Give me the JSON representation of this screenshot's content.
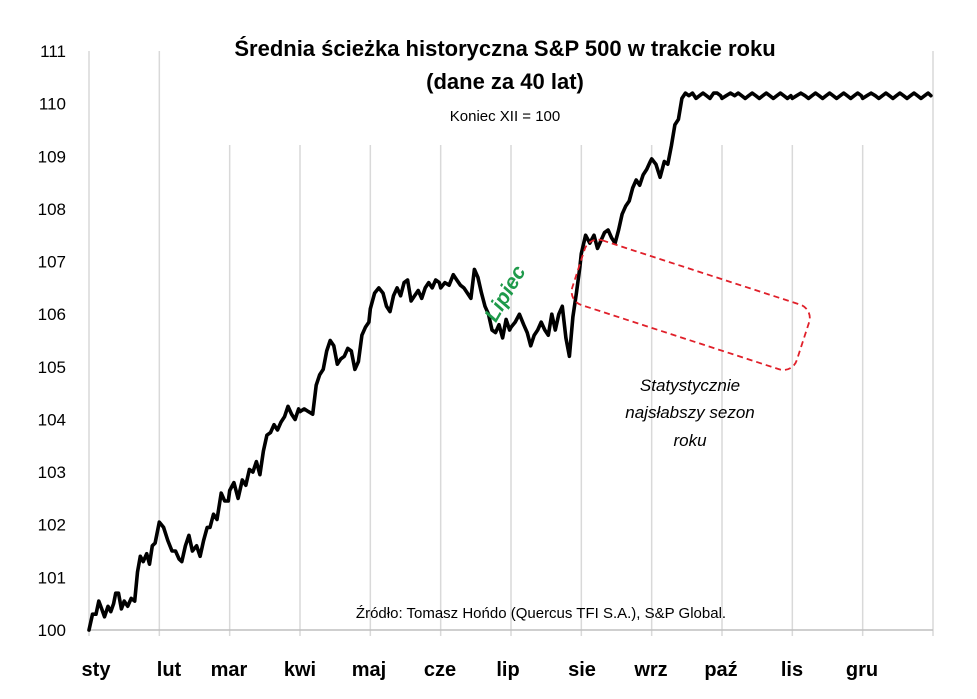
{
  "chart_data": {
    "type": "line",
    "title": "Średnia ścieżka historyczna S&P 500 w trakcie roku",
    "title_line2": "(dane za 40 lat)",
    "subtitle": "Koniec XII = 100",
    "source": "Źródło: Tomasz Hońdo (Quercus TFI S.A.), S&P Global.",
    "categories": [
      "sty",
      "lut",
      "mar",
      "kwi",
      "maj",
      "cze",
      "lip",
      "sie",
      "wrz",
      "paź",
      "lis",
      "gru"
    ],
    "y_ticks": [
      "100",
      "101",
      "102",
      "103",
      "104",
      "105",
      "106",
      "107",
      "108",
      "109",
      "110",
      "111"
    ],
    "ylim": [
      100,
      111
    ],
    "xlim": [
      0,
      12
    ],
    "grid": "vertical",
    "line_color": "#000000",
    "annotation_color": "#1e9a4a",
    "box_color": "#e0202a",
    "annotations": {
      "lipiec": "Lipiec",
      "weak_line1": "Statystycznie",
      "weak_line2": "najsłabszy sezon",
      "weak_line3": "roku"
    },
    "series": [
      {
        "x": [
          0.0,
          0.05,
          0.1,
          0.14,
          0.18,
          0.22,
          0.27,
          0.31,
          0.35,
          0.38,
          0.42,
          0.46,
          0.5,
          0.55,
          0.6,
          0.65,
          0.69,
          0.73,
          0.77,
          0.82,
          0.86,
          0.9,
          0.94,
          1.0,
          1.06,
          1.12,
          1.18,
          1.23,
          1.28,
          1.32,
          1.37,
          1.42,
          1.47,
          1.53,
          1.58,
          1.63,
          1.68,
          1.72,
          1.77,
          1.82,
          1.88,
          1.93,
          1.98,
          2.0,
          2.06,
          2.12,
          2.18,
          2.23,
          2.28,
          2.33,
          2.38,
          2.43,
          2.48,
          2.53,
          2.58,
          2.63,
          2.68,
          2.73,
          2.78,
          2.83,
          2.88,
          2.93,
          2.98,
          3.0,
          3.06,
          3.12,
          3.18,
          3.23,
          3.28,
          3.33,
          3.38,
          3.43,
          3.48,
          3.53,
          3.58,
          3.63,
          3.68,
          3.73,
          3.78,
          3.83,
          3.88,
          3.93,
          3.98,
          4.0,
          4.06,
          4.12,
          4.18,
          4.23,
          4.28,
          4.33,
          4.38,
          4.43,
          4.48,
          4.53,
          4.58,
          4.63,
          4.68,
          4.73,
          4.78,
          4.83,
          4.88,
          4.93,
          4.98,
          5.0,
          5.06,
          5.12,
          5.18,
          5.23,
          5.28,
          5.33,
          5.38,
          5.43,
          5.48,
          5.53,
          5.58,
          5.63,
          5.68,
          5.73,
          5.78,
          5.83,
          5.88,
          5.93,
          5.98,
          6.0,
          6.06,
          6.12,
          6.18,
          6.23,
          6.28,
          6.33,
          6.38,
          6.43,
          6.48,
          6.53,
          6.58,
          6.63,
          6.68,
          6.73,
          6.78,
          6.83,
          6.88,
          6.93,
          6.98,
          7.0,
          7.06,
          7.12,
          7.18,
          7.23,
          7.28,
          7.33,
          7.38,
          7.43,
          7.48,
          7.53,
          7.58,
          7.63,
          7.68,
          7.73,
          7.78,
          7.83,
          7.88,
          7.93,
          7.98,
          8.0,
          8.06,
          8.12,
          8.18,
          8.23,
          8.28,
          8.33,
          8.38,
          8.43,
          8.48,
          8.53,
          8.58,
          8.63,
          8.68,
          8.73,
          8.78,
          8.83,
          8.88,
          8.93,
          8.98,
          9.0,
          9.06,
          9.12,
          9.18,
          9.23,
          9.28,
          9.33,
          9.38,
          9.43,
          9.48,
          9.53,
          9.58,
          9.63,
          9.68,
          9.73,
          9.78,
          9.83,
          9.88,
          9.93,
          9.98,
          10.0,
          10.06,
          10.12,
          10.18,
          10.23,
          10.28,
          10.33,
          10.38,
          10.43,
          10.48,
          10.53,
          10.58,
          10.63,
          10.68,
          10.73,
          10.78,
          10.83,
          10.88,
          10.93,
          10.98,
          11.0,
          11.06,
          11.12,
          11.18,
          11.23,
          11.28,
          11.33,
          11.38,
          11.43,
          11.48,
          11.53,
          11.58,
          11.63,
          11.68,
          11.73,
          11.78,
          11.83,
          11.88,
          11.93,
          11.97
        ],
        "values": [
          100.0,
          100.3,
          100.3,
          100.55,
          100.4,
          100.25,
          100.45,
          100.35,
          100.5,
          100.7,
          100.7,
          100.4,
          100.55,
          100.45,
          100.6,
          100.55,
          101.1,
          101.4,
          101.3,
          101.45,
          101.25,
          101.6,
          101.65,
          102.05,
          101.95,
          101.7,
          101.5,
          101.5,
          101.35,
          101.3,
          101.6,
          101.8,
          101.5,
          101.6,
          101.4,
          101.7,
          101.95,
          101.95,
          102.2,
          102.1,
          102.6,
          102.45,
          102.45,
          102.65,
          102.8,
          102.5,
          102.85,
          102.75,
          103.05,
          103.0,
          103.2,
          102.95,
          103.4,
          103.7,
          103.75,
          103.9,
          103.8,
          103.95,
          104.05,
          104.25,
          104.1,
          104.0,
          104.2,
          104.15,
          104.2,
          104.15,
          104.1,
          104.65,
          104.85,
          104.95,
          105.3,
          105.5,
          105.4,
          105.05,
          105.15,
          105.2,
          105.35,
          105.3,
          104.95,
          105.1,
          105.6,
          105.75,
          105.85,
          106.1,
          106.4,
          106.5,
          106.4,
          106.15,
          106.05,
          106.35,
          106.5,
          106.35,
          106.6,
          106.65,
          106.25,
          106.35,
          106.45,
          106.3,
          106.5,
          106.6,
          106.5,
          106.65,
          106.6,
          106.5,
          106.6,
          106.55,
          106.75,
          106.65,
          106.55,
          106.5,
          106.4,
          106.3,
          106.85,
          106.7,
          106.4,
          106.15,
          106.0,
          105.7,
          105.65,
          105.8,
          105.55,
          105.9,
          105.7,
          105.75,
          105.85,
          106.0,
          105.8,
          105.65,
          105.4,
          105.6,
          105.7,
          105.85,
          105.7,
          105.6,
          106.0,
          105.7,
          106.0,
          106.15,
          105.55,
          105.2,
          105.95,
          106.4,
          106.9,
          107.15,
          107.5,
          107.35,
          107.5,
          107.25,
          107.4,
          107.55,
          107.6,
          107.45,
          107.35,
          107.6,
          107.9,
          108.05,
          108.15,
          108.4,
          108.55,
          108.45,
          108.65,
          108.75,
          108.9,
          108.95,
          108.85,
          108.6,
          108.9,
          108.85,
          109.2,
          109.6,
          109.7,
          110.1,
          110.2,
          110.15,
          110.2,
          110.1,
          110.15,
          110.2,
          110.15,
          110.1,
          110.2,
          110.2,
          110.15,
          110.1,
          110.15,
          110.2,
          110.15,
          110.2,
          110.15,
          110.1,
          110.15,
          110.2,
          110.15,
          110.1,
          110.15,
          110.2,
          110.15,
          110.1,
          110.15,
          110.2,
          110.15,
          110.1,
          110.15,
          110.1,
          110.15,
          110.2,
          110.15,
          110.1,
          110.15,
          110.2,
          110.15,
          110.1,
          110.15,
          110.2,
          110.15,
          110.1,
          110.15,
          110.2,
          110.15,
          110.1,
          110.15,
          110.2,
          110.15,
          110.1,
          110.15,
          110.2,
          110.15,
          110.1,
          110.15,
          110.2,
          110.15,
          110.1,
          110.15,
          110.2,
          110.15,
          110.1,
          110.15,
          110.2,
          110.15,
          110.1,
          110.15,
          110.2,
          110.15
        ]
      }
    ]
  }
}
